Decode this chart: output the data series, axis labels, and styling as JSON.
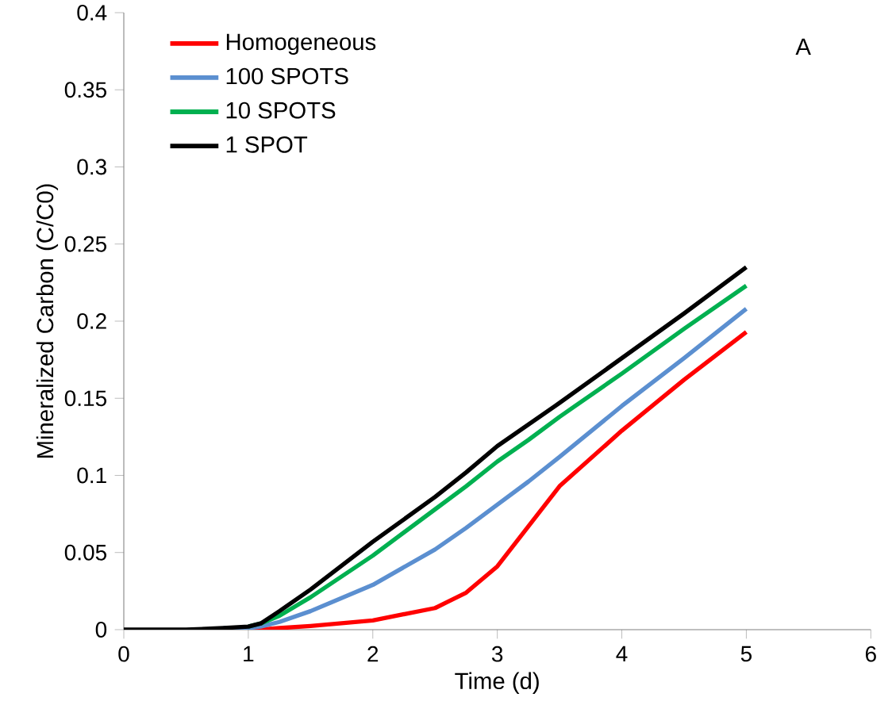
{
  "chart_data": {
    "type": "line",
    "xlabel": "Time (d)",
    "ylabel": "Mineralized Carbon (C/C0)",
    "x": [
      0,
      0.5,
      0.8,
      1.0,
      1.1,
      1.25,
      1.5,
      2,
      2.5,
      2.75,
      3,
      3.25,
      3.5,
      4,
      4.5,
      5
    ],
    "series": [
      {
        "name": "Homogeneous",
        "color": "#ff0000",
        "values": [
          null,
          null,
          0,
          0,
          0,
          0.001,
          0.0024,
          0.006,
          0.014,
          0.024,
          0.041,
          0.067,
          0.093,
          0.129,
          0.162,
          0.193
        ]
      },
      {
        "name": "100 SPOTS",
        "color": "#5b8fd0",
        "values": [
          null,
          null,
          0.001,
          0.001,
          0.002,
          0.005,
          0.012,
          0.029,
          0.052,
          0.066,
          0.081,
          0.096,
          0.112,
          0.145,
          0.176,
          0.208
        ]
      },
      {
        "name": "10 SPOTS",
        "color": "#00b050",
        "values": [
          null,
          null,
          null,
          0.002,
          0.004,
          0.009,
          0.021,
          0.048,
          0.078,
          0.093,
          0.109,
          0.123,
          0.138,
          0.166,
          0.195,
          0.223
        ]
      },
      {
        "name": "1 SPOT",
        "color": "#000000",
        "values": [
          0,
          0,
          0.001,
          0.002,
          0.004,
          0.012,
          0.026,
          0.057,
          0.086,
          0.102,
          0.119,
          0.133,
          0.147,
          0.176,
          0.205,
          0.235
        ]
      }
    ],
    "xlim": [
      0,
      6
    ],
    "xticks": [
      0,
      1,
      2,
      3,
      4,
      5,
      6
    ],
    "ylim": [
      0,
      0.4
    ],
    "yticks": [
      0,
      0.05,
      0.1,
      0.15,
      0.2,
      0.25,
      0.3,
      0.35,
      0.4
    ],
    "legend": "top left",
    "grid": false,
    "marker": "none",
    "line_style": "solid",
    "annotations": [
      "A"
    ]
  }
}
